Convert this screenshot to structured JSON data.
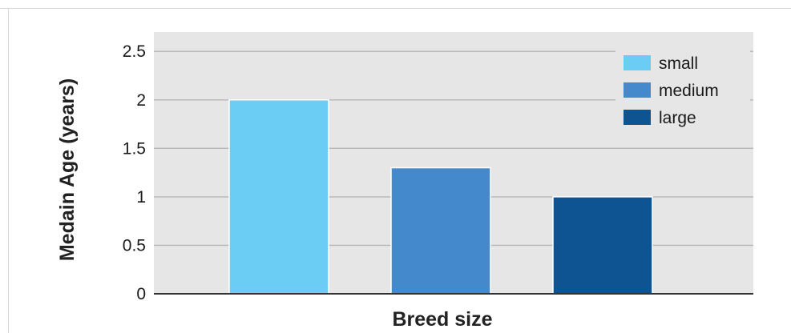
{
  "chart_data": {
    "type": "bar",
    "title": "",
    "xlabel": "Breed size",
    "ylabel": "Medain Age (years)",
    "ylim": [
      0,
      2.5
    ],
    "yticks": [
      "0",
      "0.5",
      "1",
      "1.5",
      "2",
      "2.5"
    ],
    "ytick_values": [
      0,
      0.5,
      1,
      1.5,
      2,
      2.5
    ],
    "categories": [
      "small",
      "medium",
      "large"
    ],
    "values": [
      2,
      1.3,
      1
    ],
    "colors": [
      "#6ccdf4",
      "#4389cb",
      "#0d5592"
    ],
    "legend": {
      "position": "top-right",
      "entries": [
        {
          "label": "small",
          "color": "#6ccdf4"
        },
        {
          "label": "medium",
          "color": "#4389cb"
        },
        {
          "label": "large",
          "color": "#0d5592"
        }
      ]
    },
    "grid": true,
    "plot_background": "#e6e6e6"
  }
}
